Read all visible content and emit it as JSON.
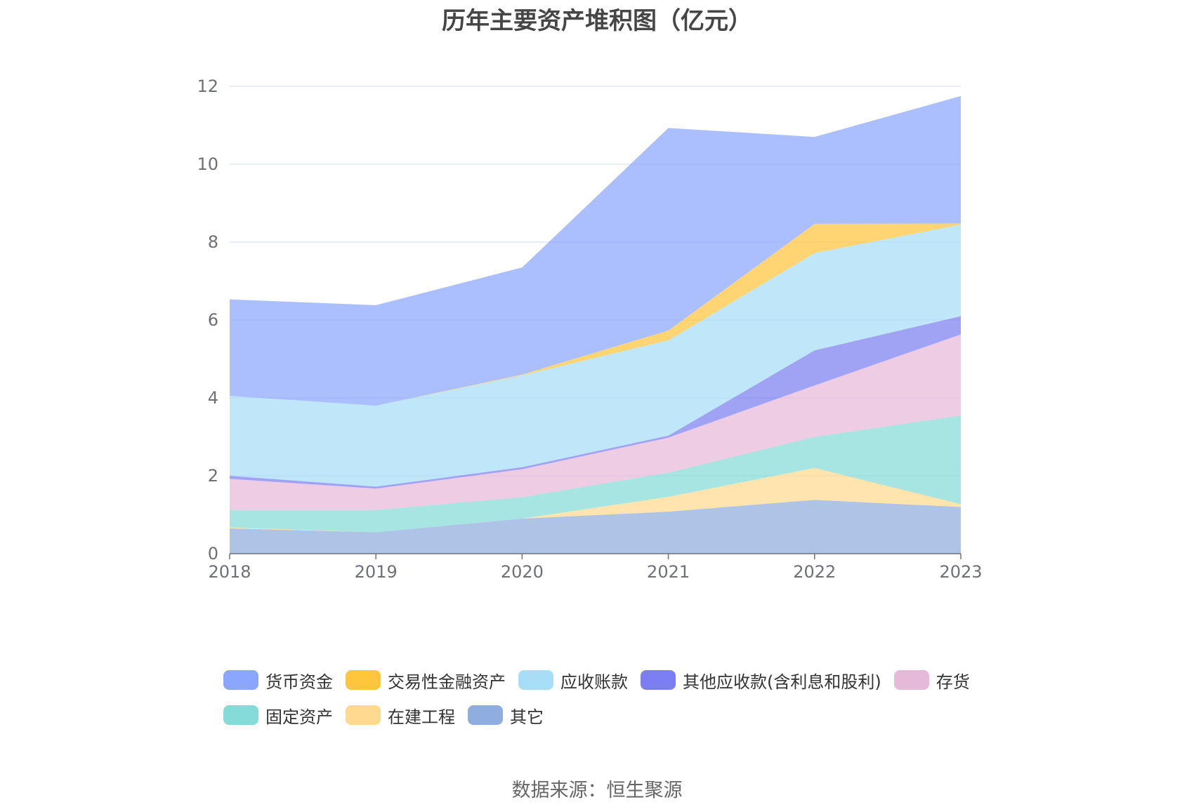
{
  "chart_data": {
    "type": "area",
    "stacked": true,
    "title": "历年主要资产堆积图（亿元）",
    "x": [
      "2018",
      "2019",
      "2020",
      "2021",
      "2022",
      "2023"
    ],
    "y_ticks": [
      "0",
      "2",
      "4",
      "6",
      "8",
      "10",
      "12"
    ],
    "ylim": [
      0,
      12
    ],
    "grid": true,
    "legend_position": "bottom",
    "series": [
      {
        "name": "其它",
        "color": "#8fadde",
        "values": [
          0.65,
          0.55,
          0.9,
          1.08,
          1.38,
          1.2
        ]
      },
      {
        "name": "在建工程",
        "color": "#ffd98f",
        "values": [
          0.02,
          0.0,
          0.0,
          0.38,
          0.82,
          0.07
        ]
      },
      {
        "name": "固定资产",
        "color": "#85dbd7",
        "values": [
          0.45,
          0.57,
          0.55,
          0.62,
          0.8,
          2.28
        ]
      },
      {
        "name": "存货",
        "color": "#e6b9d9",
        "values": [
          0.8,
          0.55,
          0.72,
          0.9,
          1.32,
          2.08
        ]
      },
      {
        "name": "其他应收款(含利息和股利)",
        "color": "#7b7ef0",
        "values": [
          0.08,
          0.05,
          0.05,
          0.05,
          0.9,
          0.47
        ]
      },
      {
        "name": "应收账款",
        "color": "#a8ddf7",
        "values": [
          2.05,
          2.08,
          2.36,
          2.45,
          2.5,
          2.35
        ]
      },
      {
        "name": "交易性金融资产",
        "color": "#ffc53d",
        "values": [
          0.0,
          0.0,
          0.02,
          0.25,
          0.75,
          0.03
        ]
      },
      {
        "name": "货币资金",
        "color": "#8aa6ff",
        "values": [
          2.48,
          2.58,
          2.75,
          5.2,
          2.23,
          3.27
        ]
      }
    ],
    "legend": [
      "货币资金",
      "交易性金融资产",
      "应收账款",
      "其他应收款(含利息和股利)",
      "存货",
      "固定资产",
      "在建工程",
      "其它"
    ],
    "source": "数据来源：恒生聚源"
  }
}
